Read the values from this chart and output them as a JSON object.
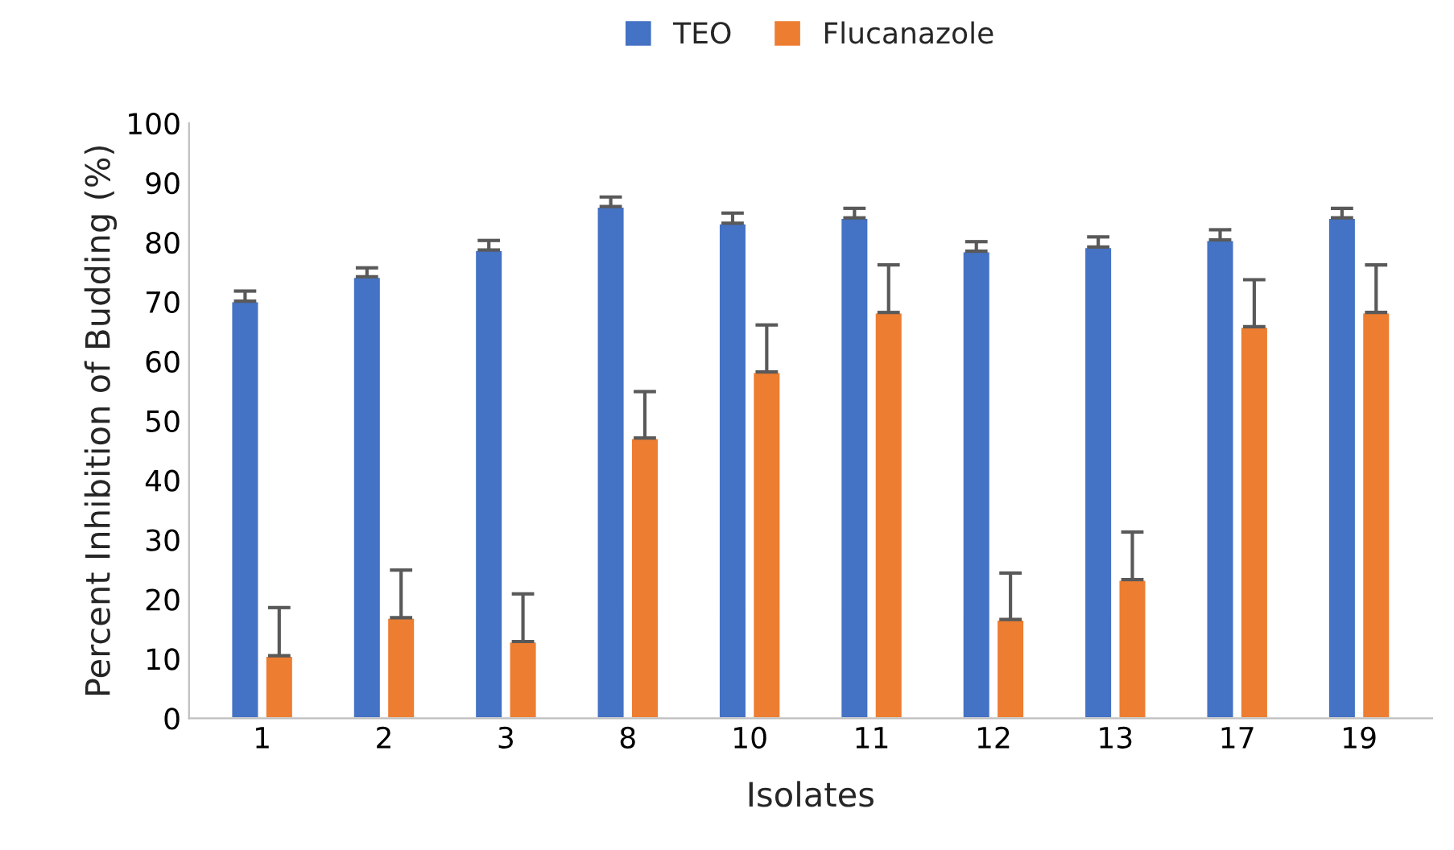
{
  "chart_data": {
    "type": "bar",
    "xlabel": "Isolates",
    "ylabel": "Percent Inhibition of Budding (%)",
    "categories": [
      "1",
      "2",
      "3",
      "8",
      "10",
      "11",
      "12",
      "13",
      "17",
      "19"
    ],
    "series": [
      {
        "name": "TEO",
        "color": "#4472c4",
        "values": [
          70.1,
          74.2,
          78.7,
          86.0,
          83.2,
          84.1,
          78.5,
          79.2,
          80.4,
          84.1
        ],
        "errors": [
          [
            70.1,
            71.8
          ],
          [
            74.2,
            75.7
          ],
          [
            78.7,
            80.3
          ],
          [
            86.0,
            87.6
          ],
          [
            83.2,
            84.9
          ],
          [
            84.1,
            85.7
          ],
          [
            78.5,
            80.1
          ],
          [
            79.2,
            80.9
          ],
          [
            80.4,
            82.1
          ],
          [
            84.1,
            85.7
          ]
        ]
      },
      {
        "name": "Flucanazole",
        "color": "#ed7d31",
        "values": [
          10.5,
          16.9,
          12.9,
          47.1,
          58.2,
          68.2,
          16.6,
          23.3,
          65.8,
          68.2
        ],
        "errors": [
          [
            10.5,
            18.6
          ],
          [
            16.9,
            24.9
          ],
          [
            12.9,
            20.9
          ],
          [
            47.1,
            54.9
          ],
          [
            58.2,
            66.1
          ],
          [
            68.2,
            76.2
          ],
          [
            16.6,
            24.4
          ],
          [
            23.3,
            31.3
          ],
          [
            65.8,
            73.7
          ],
          [
            68.2,
            76.2
          ]
        ]
      }
    ],
    "ylim": [
      0,
      100
    ],
    "yticks": [
      0,
      10,
      20,
      30,
      40,
      50,
      60,
      70,
      80,
      90,
      100
    ],
    "grid": false,
    "legend": "top"
  }
}
